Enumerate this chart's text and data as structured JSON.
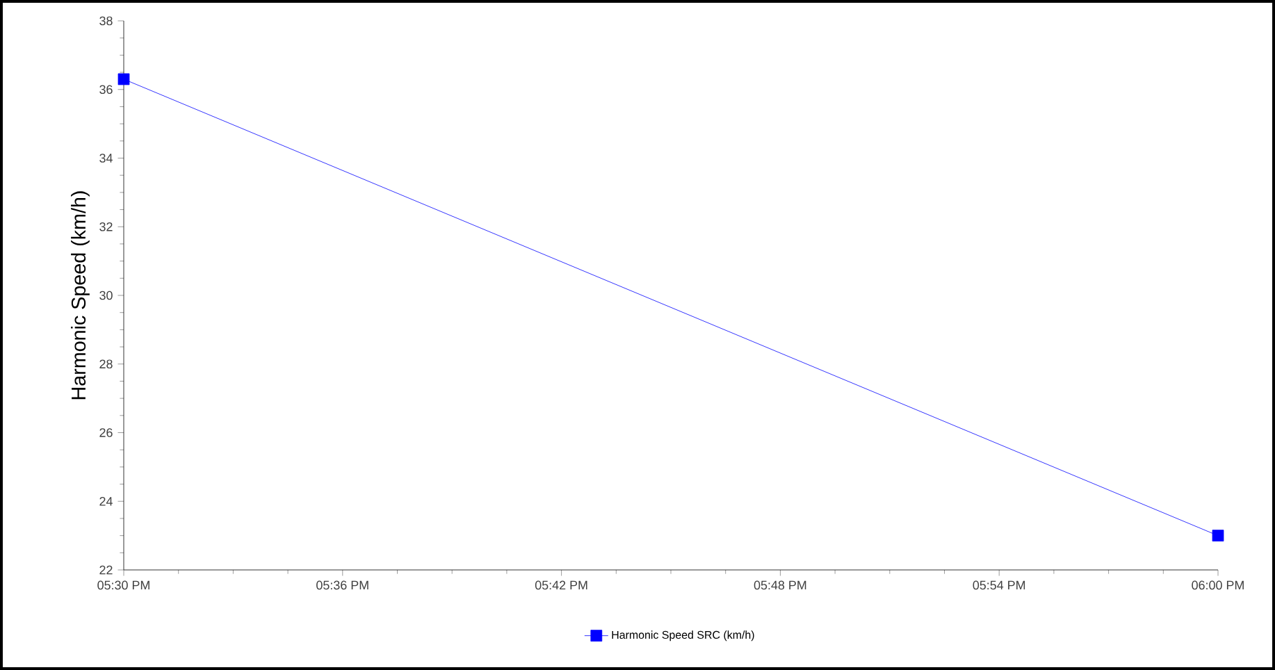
{
  "chart_data": {
    "type": "line",
    "ylabel": "Harmonic Speed (km/h)",
    "x": [
      17.5,
      18.0
    ],
    "series": [
      {
        "name": "Harmonic Speed SRC (km/h)",
        "color": "#0000ff",
        "values": [
          36.3,
          23.0
        ]
      }
    ],
    "xlim": [
      17.5,
      18.0
    ],
    "xticks": [
      {
        "value": 17.5,
        "label": "05:30 PM"
      },
      {
        "value": 17.6,
        "label": "05:36 PM"
      },
      {
        "value": 17.7,
        "label": "05:42 PM"
      },
      {
        "value": 17.8,
        "label": "05:48 PM"
      },
      {
        "value": 17.9,
        "label": "05:54 PM"
      },
      {
        "value": 18.0,
        "label": "06:00 PM"
      }
    ],
    "ylim": [
      22,
      38
    ],
    "yticks": [
      22,
      24,
      26,
      28,
      30,
      32,
      34,
      36,
      38
    ],
    "grid": false,
    "legend": "bottom",
    "marker": "square",
    "line_style": "solid"
  }
}
